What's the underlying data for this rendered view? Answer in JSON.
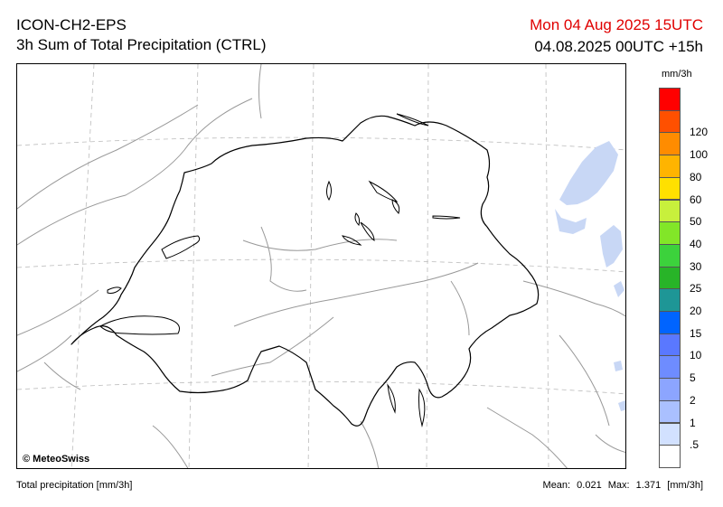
{
  "header": {
    "model": "ICON-CH2-EPS",
    "product": "3h Sum of Total Precipitation (CTRL)",
    "valid_time": "Mon 04 Aug 2025 15UTC",
    "run_time": "04.08.2025 00UTC +15h"
  },
  "map": {
    "copyright": "© MeteoSwiss",
    "border_color": "#000000",
    "region_line_color": "#999999",
    "grid_color": "#bbbbbb",
    "precip_color": "#c8d7f5"
  },
  "legend": {
    "unit": "mm/3h",
    "items": [
      {
        "label": "",
        "color": "#ff0000"
      },
      {
        "label": "120",
        "color": "#ff5000"
      },
      {
        "label": "100",
        "color": "#ff8c00"
      },
      {
        "label": "80",
        "color": "#ffb400"
      },
      {
        "label": "60",
        "color": "#ffe000"
      },
      {
        "label": "50",
        "color": "#c8f03c"
      },
      {
        "label": "40",
        "color": "#82e628"
      },
      {
        "label": "30",
        "color": "#3cd23c"
      },
      {
        "label": "25",
        "color": "#28b428"
      },
      {
        "label": "20",
        "color": "#1e9696"
      },
      {
        "label": "15",
        "color": "#0064ff"
      },
      {
        "label": "10",
        "color": "#5a78ff"
      },
      {
        "label": "5",
        "color": "#6e8cff"
      },
      {
        "label": "2",
        "color": "#8ca5ff"
      },
      {
        "label": "1",
        "color": "#aac0ff"
      },
      {
        "label": ".5",
        "color": "#d2e1ff"
      },
      {
        "label": "",
        "color": "#ffffff"
      }
    ]
  },
  "footer": {
    "left": "Total precipitation [mm/3h]",
    "mean_label": "Mean:",
    "mean_value": "0.021",
    "max_label": "Max:",
    "max_value": "1.371",
    "unit": "[mm/3h]"
  }
}
